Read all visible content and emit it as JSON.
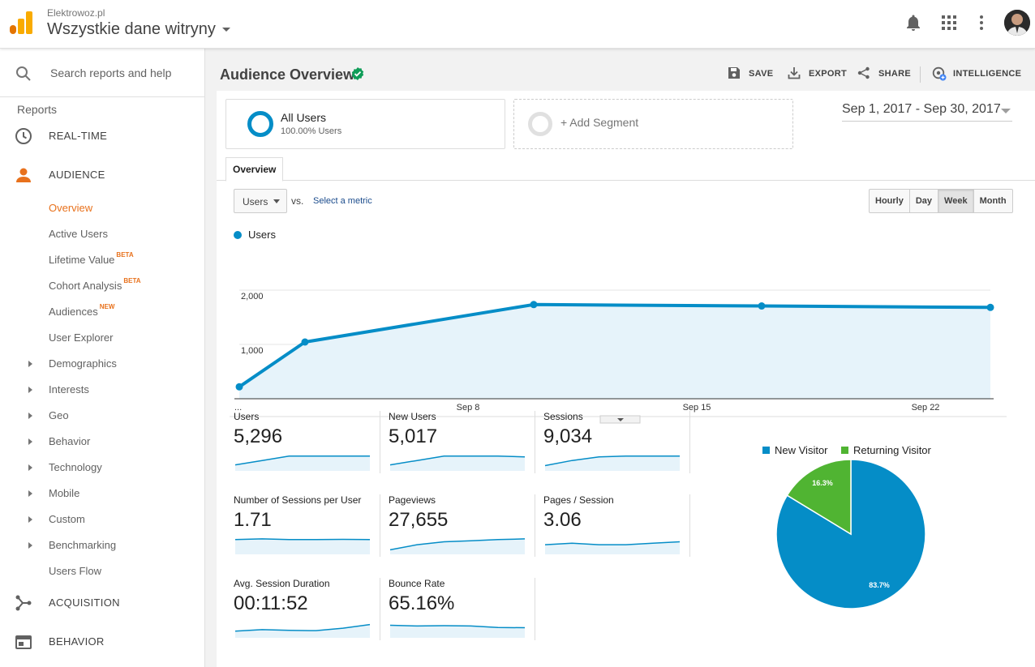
{
  "header": {
    "account": "Elektrowoz.pl",
    "property": "Wszystkie dane witryny"
  },
  "sidebar": {
    "search_placeholder": "Search reports and help",
    "reports_label": "Reports",
    "sections": {
      "realtime": "REAL-TIME",
      "audience": "AUDIENCE",
      "acquisition": "ACQUISITION",
      "behavior": "BEHAVIOR"
    },
    "audience_items": [
      {
        "label": "Overview",
        "badge": ""
      },
      {
        "label": "Active Users",
        "badge": ""
      },
      {
        "label": "Lifetime Value",
        "badge": "BETA"
      },
      {
        "label": "Cohort Analysis",
        "badge": "BETA"
      },
      {
        "label": "Audiences",
        "badge": "NEW"
      },
      {
        "label": "User Explorer",
        "badge": ""
      }
    ],
    "audience_groups": [
      "Demographics",
      "Interests",
      "Geo",
      "Behavior",
      "Technology",
      "Mobile",
      "Custom",
      "Benchmarking"
    ],
    "users_flow": "Users Flow"
  },
  "main": {
    "title": "Audience Overview",
    "tools": {
      "save": "SAVE",
      "export": "EXPORT",
      "share": "SHARE",
      "intelligence": "INTELLIGENCE"
    },
    "segments": {
      "all_users_title": "All Users",
      "all_users_sub": "100.00% Users",
      "add_segment": "+ Add Segment"
    },
    "date_range": "Sep 1, 2017 - Sep 30, 2017",
    "tab_overview": "Overview",
    "metric_select": "Users",
    "vs": "vs.",
    "select_metric": "Select a metric",
    "granularity": [
      "Hourly",
      "Day",
      "Week",
      "Month"
    ],
    "granularity_selected": "Week",
    "legend_series": "Users",
    "metrics": [
      {
        "label": "Users",
        "value": "5,296",
        "spark": [
          0.3,
          0.6,
          0.9,
          0.9,
          0.9,
          0.9
        ]
      },
      {
        "label": "New Users",
        "value": "5,017",
        "spark": [
          0.3,
          0.6,
          0.9,
          0.9,
          0.9,
          0.85
        ]
      },
      {
        "label": "Sessions",
        "value": "9,034",
        "spark": [
          0.25,
          0.6,
          0.85,
          0.9,
          0.9,
          0.9
        ]
      },
      {
        "label": "Number of Sessions per User",
        "value": "1.71",
        "spark": [
          0.9,
          0.95,
          0.9,
          0.9,
          0.92,
          0.9
        ]
      },
      {
        "label": "Pageviews",
        "value": "27,655",
        "spark": [
          0.2,
          0.55,
          0.75,
          0.82,
          0.9,
          0.95
        ]
      },
      {
        "label": "Pages / Session",
        "value": "3.06",
        "spark": [
          0.55,
          0.65,
          0.55,
          0.55,
          0.65,
          0.75
        ]
      },
      {
        "label": "Avg. Session Duration",
        "value": "00:11:52",
        "spark": [
          0.35,
          0.45,
          0.4,
          0.38,
          0.55,
          0.8
        ]
      },
      {
        "label": "Bounce Rate",
        "value": "65.16%",
        "spark": [
          0.75,
          0.7,
          0.72,
          0.7,
          0.6,
          0.58
        ]
      }
    ]
  },
  "chart_data": [
    {
      "type": "area",
      "title": "",
      "series": [
        {
          "name": "Users",
          "color": "#058dc7",
          "values": [
            210,
            1000,
            1660,
            1635,
            1610
          ]
        }
      ],
      "x": [
        "...",
        "Sep 8",
        "Sep 15",
        "Sep 22",
        ""
      ],
      "x_tick_labels": [
        "...",
        "Sep 8",
        "Sep 15",
        "Sep 22"
      ],
      "y_ticks": [
        "2,000",
        "1,000"
      ],
      "ylim": [
        0,
        2000
      ],
      "grid": true
    },
    {
      "type": "pie",
      "slices": [
        {
          "name": "New Visitor",
          "percent": 83.7,
          "label": "83.7%",
          "color": "#058dc7"
        },
        {
          "name": "Returning Visitor",
          "percent": 16.3,
          "label": "16.3%",
          "color": "#50b432"
        }
      ],
      "legend": "top"
    }
  ],
  "colors": {
    "accent": "#e8711c",
    "primary": "#058dc7",
    "secondary": "#50b432"
  }
}
